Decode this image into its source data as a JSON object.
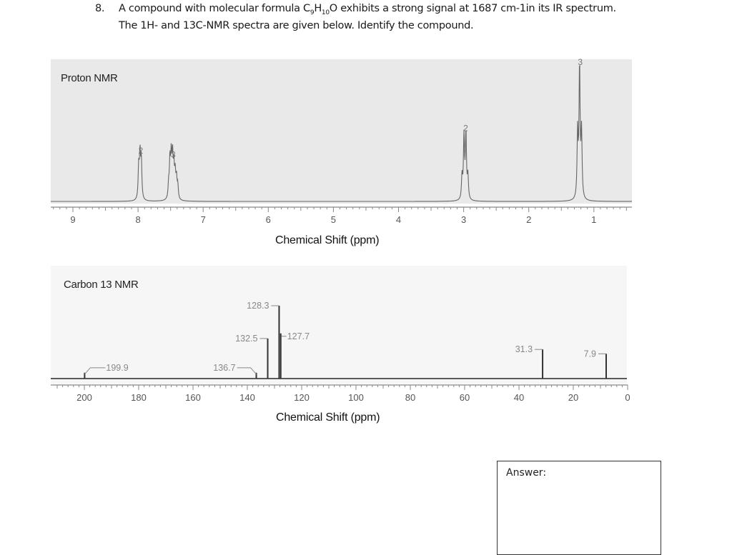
{
  "question": {
    "number": "8.",
    "line1_pre": "A compound with molecular formula C",
    "formula_c_sub": "9",
    "formula_h": "H",
    "formula_h_sub": "10",
    "formula_o": "O",
    "line1_post": " exhibits a strong signal at 1687 cm-1in its IR spectrum.",
    "line2": "The 1H- and 13C-NMR spectra are given below. Identify the compound."
  },
  "answer": {
    "label": "Answer:",
    "value": ""
  },
  "chart_data": [
    {
      "type": "line",
      "title": "Proton NMR",
      "xlabel": "Chemical Shift (ppm)",
      "ylabel": "",
      "xlim": [
        9.2,
        0.4
      ],
      "x_reversed": true,
      "grid": false,
      "tick_labels": [
        "9",
        "8",
        "7",
        "6",
        "5",
        "4",
        "3",
        "2",
        "1"
      ],
      "peaks": [
        {
          "ppm": 7.97,
          "integration": "2",
          "multiplicity": "doublet",
          "rel_height": 0.33
        },
        {
          "ppm": 7.47,
          "integration": "3",
          "multiplicity": "multiplet",
          "rel_height": 0.3
        },
        {
          "ppm": 2.98,
          "integration": "2",
          "multiplicity": "quartet",
          "rel_height": 0.5
        },
        {
          "ppm": 1.22,
          "integration": "3",
          "multiplicity": "triplet",
          "rel_height": 1.0
        }
      ]
    },
    {
      "type": "line",
      "title": "Carbon 13 NMR",
      "xlabel": "Chemical Shift (ppm)",
      "ylabel": "",
      "xlim": [
        210,
        0
      ],
      "x_reversed": true,
      "grid": false,
      "tick_labels": [
        "200",
        "180",
        "160",
        "140",
        "120",
        "100",
        "80",
        "60",
        "40",
        "20",
        "0"
      ],
      "peaks": [
        {
          "ppm": 199.9,
          "label": "199.9",
          "rel_height": 0.08
        },
        {
          "ppm": 136.7,
          "label": "136.7",
          "rel_height": 0.08
        },
        {
          "ppm": 132.5,
          "label": "132.5",
          "rel_height": 0.55
        },
        {
          "ppm": 128.3,
          "label": "128.3",
          "rel_height": 1.0
        },
        {
          "ppm": 127.7,
          "label": "127.7",
          "rel_height": 0.62
        },
        {
          "ppm": 31.3,
          "label": "31.3",
          "rel_height": 0.4
        },
        {
          "ppm": 7.9,
          "label": "7.9",
          "rel_height": 0.34
        }
      ]
    }
  ]
}
